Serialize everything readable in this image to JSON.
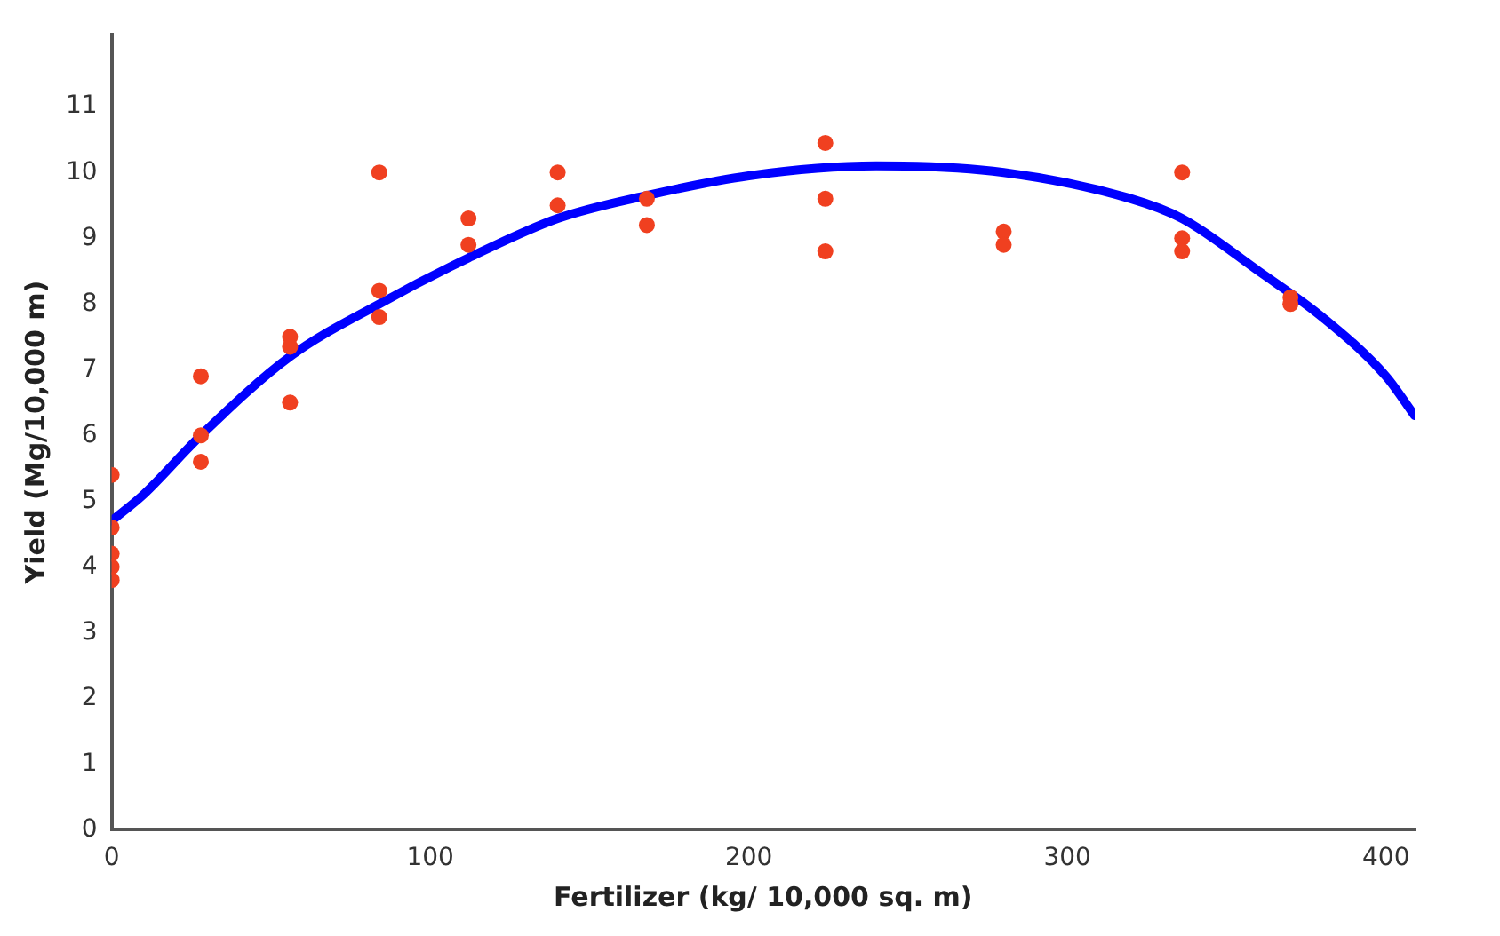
{
  "chart_data": {
    "type": "scatter",
    "xlabel": "Fertilizer (kg/ 10,000 sq. m)",
    "ylabel": "Yield (Mg/10,000 m)",
    "xlim": [
      0,
      409
    ],
    "xticks": [
      0,
      100,
      200,
      300,
      400
    ],
    "ylim": [
      0,
      12.1
    ],
    "yticks": [
      0,
      1,
      2,
      3,
      4,
      5,
      6,
      7,
      8,
      9,
      10,
      11
    ],
    "grid": false,
    "legend": false,
    "series": [
      {
        "color": "#f04020",
        "marker": "circle",
        "x": [
          0,
          0,
          0,
          0,
          0,
          28,
          28,
          28,
          56,
          56,
          56,
          84,
          84,
          84,
          112,
          112,
          140,
          140,
          168,
          168,
          224,
          224,
          224,
          280,
          280,
          336,
          336,
          336,
          370,
          370
        ],
        "values": [
          5.4,
          4.6,
          4.2,
          4.0,
          3.8,
          6.9,
          6.0,
          5.6,
          7.5,
          7.35,
          6.5,
          10.0,
          8.2,
          7.8,
          9.3,
          8.9,
          10.0,
          9.5,
          9.6,
          9.2,
          10.45,
          9.6,
          8.8,
          9.1,
          8.9,
          10.0,
          9.0,
          8.8,
          8.1,
          8.0
        ]
      },
      {
        "type": "line",
        "color": "#0000ff",
        "marker": "none",
        "x": [
          0,
          10,
          28,
          56,
          84,
          112,
          140,
          168,
          200,
          240,
          280,
          320,
          336,
          360,
          380,
          400,
          409
        ],
        "values": [
          4.7,
          5.1,
          6.0,
          7.2,
          8.0,
          8.7,
          9.3,
          9.65,
          9.95,
          10.1,
          10.0,
          9.6,
          9.3,
          8.5,
          7.8,
          6.9,
          6.3
        ]
      }
    ]
  }
}
